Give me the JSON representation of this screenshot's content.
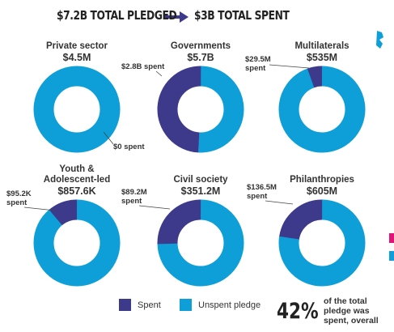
{
  "header": {
    "pledged": "$7.2B TOTAL PLEDGED",
    "spent": "$3B TOTAL SPENT"
  },
  "chart_data": [
    {
      "type": "donut",
      "title": "Private sector",
      "pledged": 4500000,
      "pledged_label": "$4.5M",
      "spent": 0,
      "spent_label": "$0 spent"
    },
    {
      "type": "donut",
      "title": "Governments",
      "pledged": 5700000000,
      "pledged_label": "$5.7B",
      "spent": 2800000000,
      "spent_label": "$2.8B spent"
    },
    {
      "type": "donut",
      "title": "Multilaterals",
      "pledged": 535000000,
      "pledged_label": "$535M",
      "spent": 29500000,
      "spent_label": "$29.5M spent"
    },
    {
      "type": "donut",
      "title": "Youth & Adolescent-led",
      "pledged": 857600,
      "pledged_label": "$857.6K",
      "spent": 95200,
      "spent_label": "$95.2K spent"
    },
    {
      "type": "donut",
      "title": "Civil society",
      "pledged": 351200000,
      "pledged_label": "$351.2M",
      "spent": 89200000,
      "spent_label": "$89.2M spent"
    },
    {
      "type": "donut",
      "title": "Philanthropies",
      "pledged": 605000000,
      "pledged_label": "$605M",
      "spent": 136500000,
      "spent_label": "$136.5M spent"
    }
  ],
  "legend": [
    {
      "name": "Spent",
      "color": "#3d3a8c"
    },
    {
      "name": "Unspent pledge",
      "color": "#0e9fd9"
    }
  ],
  "footnote": {
    "value": 42,
    "label": "42%",
    "text": "of the total pledge was spent, overall"
  }
}
